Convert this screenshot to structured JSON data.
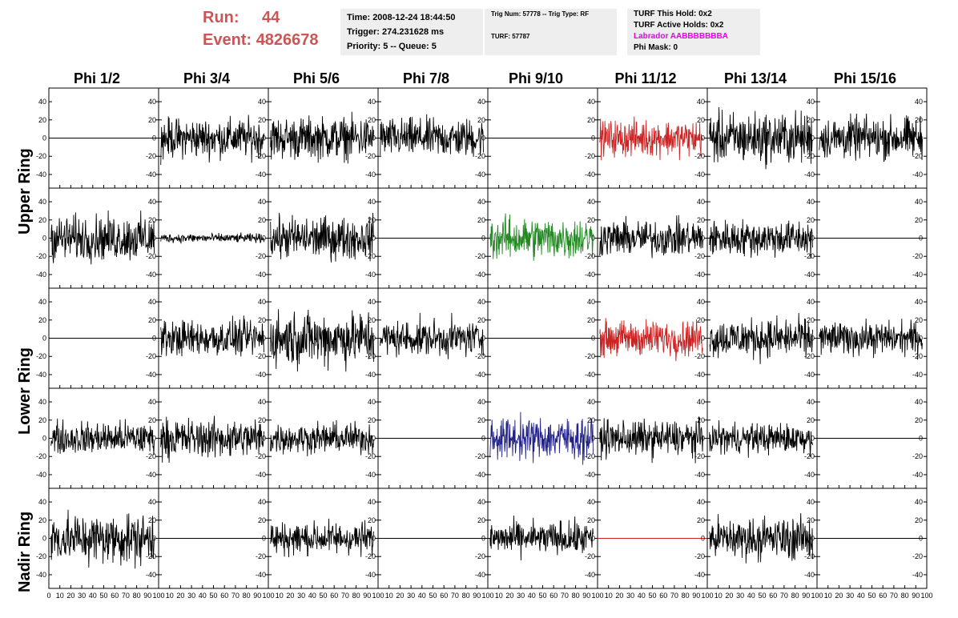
{
  "run": {
    "run_label": "Run:",
    "run_value": "44",
    "event_label": "Event:",
    "event_value": "4826678"
  },
  "time_box": {
    "time": "Time: 2008-12-24 18:44:50",
    "trigger": "Trigger: 274.231628 ms",
    "priority": "Priority: 5 -- Queue: 5"
  },
  "trig_box": {
    "trig": "Trig Num: 57778 -- Trig Type: RF",
    "turf": "TURF: 57787"
  },
  "turf_box": {
    "this_hold": "TURF This Hold: 0x2",
    "active_holds": "TURF Active Holds: 0x2",
    "labrador": "Labrador AABBBBBBBA",
    "phi_mask": "Phi Mask: 0"
  },
  "phi_headers": [
    "Phi 1/2",
    "Phi 3/4",
    "Phi 5/6",
    "Phi 7/8",
    "Phi 9/10",
    "Phi 11/12",
    "Phi 13/14",
    "Phi 15/16"
  ],
  "ring_labels": {
    "upper": "Upper Ring",
    "lower": "Lower Ring",
    "nadir": "Nadir Ring"
  },
  "y_ticks": [
    "40",
    "20",
    "0",
    "-20",
    "-40"
  ],
  "x_ticks": [
    "0",
    "10",
    "20",
    "30",
    "40",
    "50",
    "60",
    "70",
    "80",
    "90",
    "100"
  ],
  "colors": {
    "default": "#000000",
    "red": "#cc2222",
    "green": "#228822",
    "blue": "#222288",
    "run_text": "#cc5555"
  },
  "chart_data": {
    "type": "line",
    "description_rows": [
      "Upper Ring 1",
      "Upper Ring 2",
      "Lower Ring 1",
      "Lower Ring 2",
      "Nadir Ring"
    ],
    "xlim": [
      0,
      100
    ],
    "ylim": [
      -55,
      55
    ],
    "panels": [
      [
        {
          "a": 0,
          "c": "default"
        },
        {
          "a": 13,
          "c": "default"
        },
        {
          "a": 14,
          "c": "default"
        },
        {
          "a": 13,
          "c": "default"
        },
        {
          "a": 0,
          "c": "default"
        },
        {
          "a": 12,
          "c": "red"
        },
        {
          "a": 17,
          "c": "default"
        },
        {
          "a": 14,
          "c": "default"
        }
      ],
      [
        {
          "a": 15,
          "c": "default"
        },
        {
          "a": 3,
          "c": "default"
        },
        {
          "a": 14,
          "c": "default"
        },
        {
          "a": 0,
          "c": "default"
        },
        {
          "a": 14,
          "c": "green"
        },
        {
          "a": 12,
          "c": "default"
        },
        {
          "a": 12,
          "c": "default"
        },
        {
          "a": 0,
          "c": "default"
        }
      ],
      [
        {
          "a": 0,
          "c": "default"
        },
        {
          "a": 12,
          "c": "default"
        },
        {
          "a": 18,
          "c": "default"
        },
        {
          "a": 12,
          "c": "default"
        },
        {
          "a": 0,
          "c": "default"
        },
        {
          "a": 12,
          "c": "red"
        },
        {
          "a": 13,
          "c": "default"
        },
        {
          "a": 11,
          "c": "default"
        }
      ],
      [
        {
          "a": 11,
          "c": "default"
        },
        {
          "a": 13,
          "c": "default"
        },
        {
          "a": 10,
          "c": "default"
        },
        {
          "a": 0,
          "c": "default"
        },
        {
          "a": 14,
          "c": "blue"
        },
        {
          "a": 12,
          "c": "default"
        },
        {
          "a": 10,
          "c": "default"
        },
        {
          "a": 0,
          "c": "default"
        }
      ],
      [
        {
          "a": 17,
          "c": "default"
        },
        {
          "a": 0,
          "c": "default"
        },
        {
          "a": 11,
          "c": "default"
        },
        {
          "a": 0,
          "c": "default"
        },
        {
          "a": 11,
          "c": "default"
        },
        {
          "a": 0,
          "c": "red"
        },
        {
          "a": 14,
          "c": "default"
        },
        {
          "a": 0,
          "c": "default"
        }
      ]
    ]
  }
}
